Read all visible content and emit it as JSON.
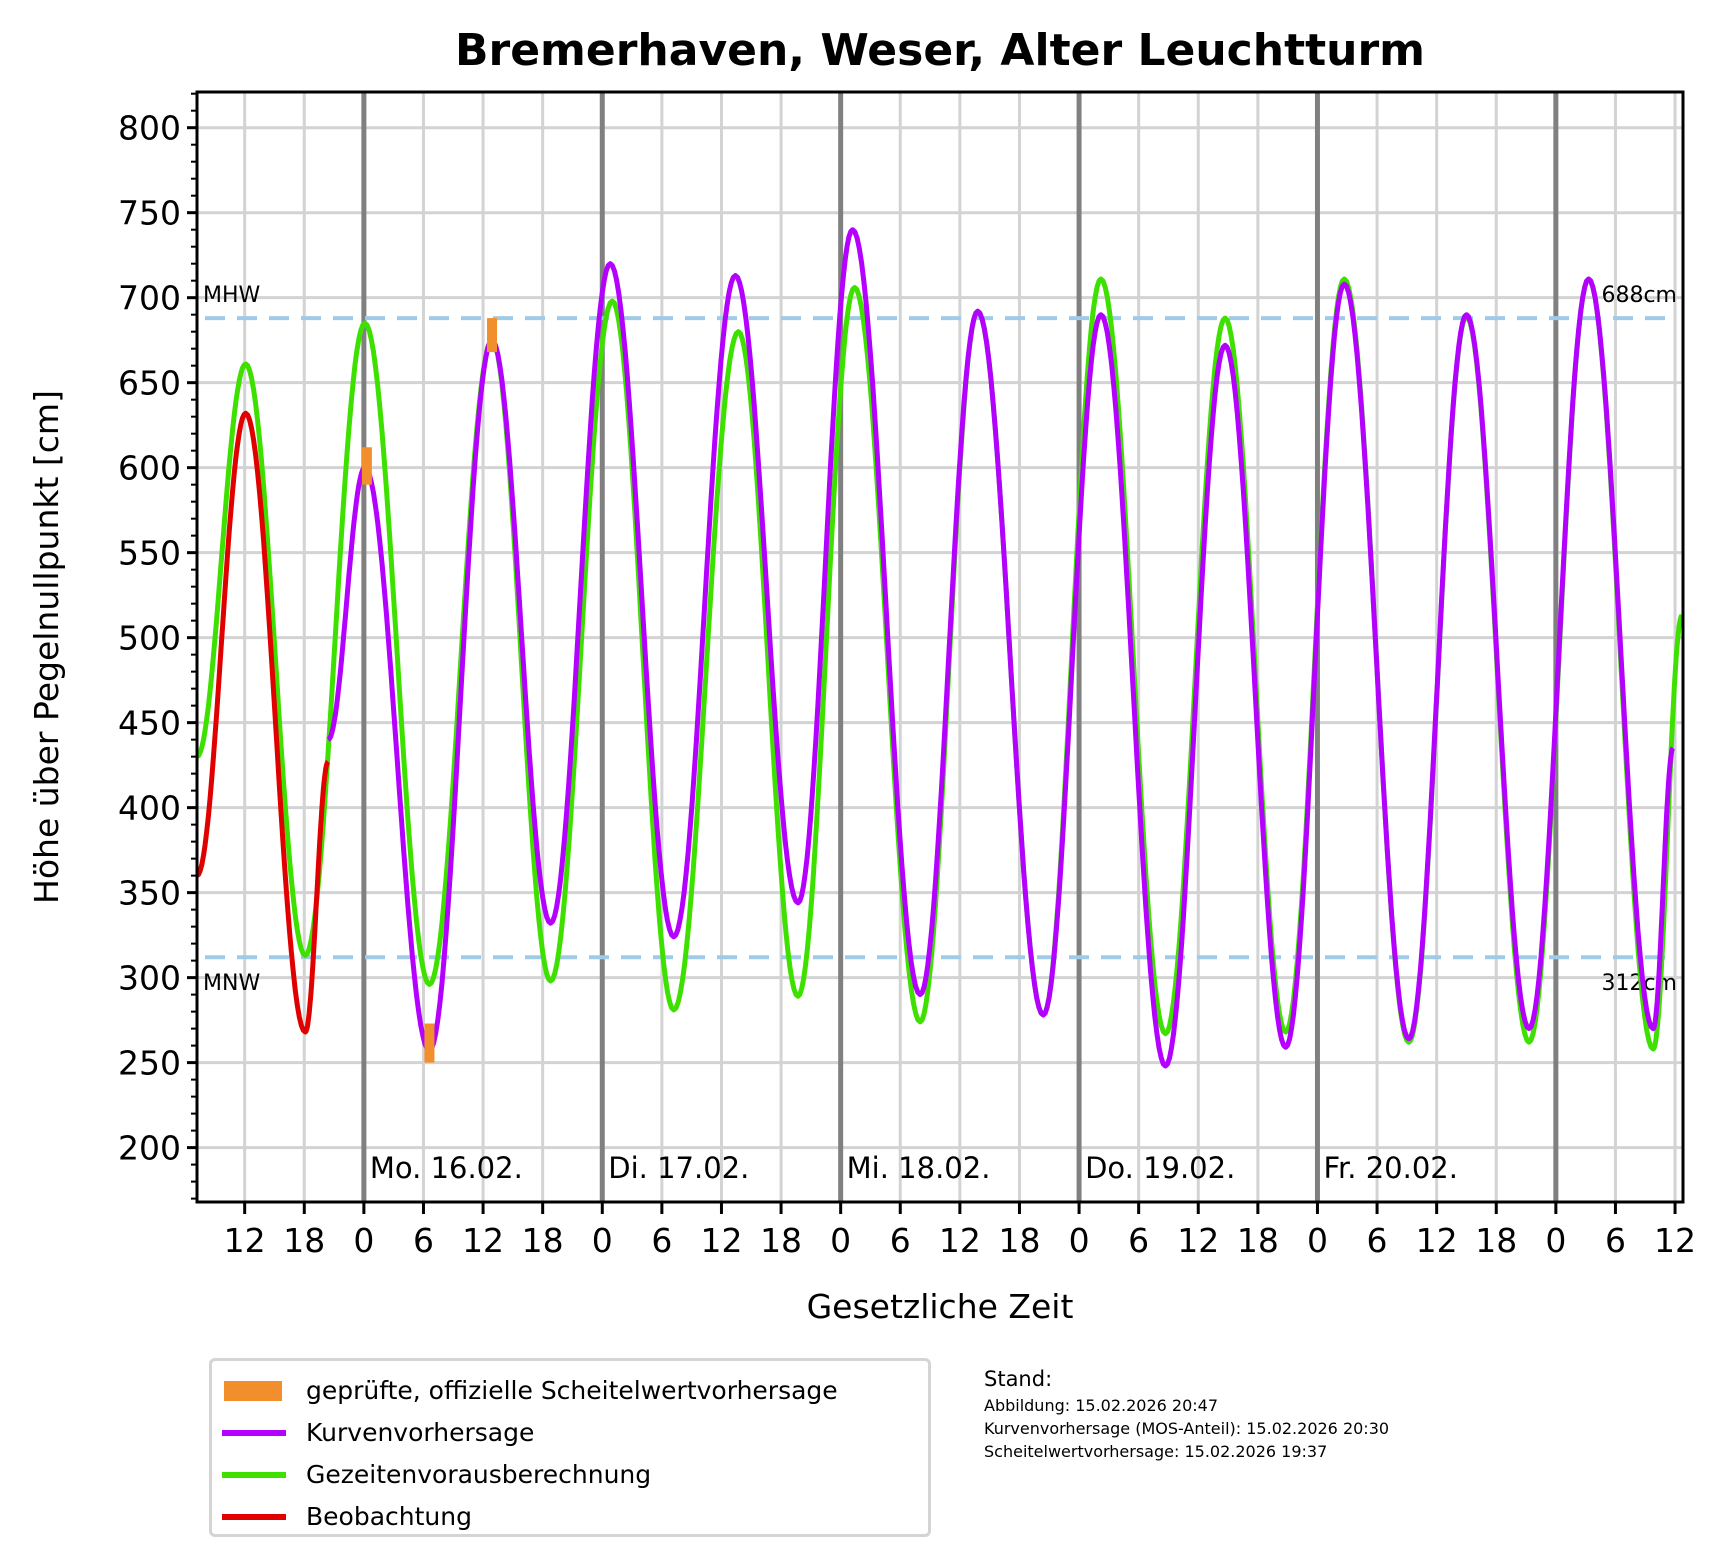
{
  "chart_data": {
    "type": "line",
    "title": "Bremerhaven, Weser, Alter Leuchtturm",
    "xlabel": "Gesetzliche Zeit",
    "ylabel": "Höhe über Pegelnullpunkt [cm]",
    "x_unit": "hours relative to Mo. 16.02. 00:00",
    "xlim": [
      -16.8,
      132.8
    ],
    "ylim": [
      168,
      821
    ],
    "grid": true,
    "yticks": [
      200,
      250,
      300,
      350,
      400,
      450,
      500,
      550,
      600,
      650,
      700,
      750,
      800
    ],
    "xticks": [
      {
        "t": -12,
        "label": "12"
      },
      {
        "t": -6,
        "label": "18"
      },
      {
        "t": 0,
        "label": "0"
      },
      {
        "t": 6,
        "label": "6"
      },
      {
        "t": 12,
        "label": "12"
      },
      {
        "t": 18,
        "label": "18"
      },
      {
        "t": 24,
        "label": "0"
      },
      {
        "t": 30,
        "label": "6"
      },
      {
        "t": 36,
        "label": "12"
      },
      {
        "t": 42,
        "label": "18"
      },
      {
        "t": 48,
        "label": "0"
      },
      {
        "t": 54,
        "label": "6"
      },
      {
        "t": 60,
        "label": "12"
      },
      {
        "t": 66,
        "label": "18"
      },
      {
        "t": 72,
        "label": "0"
      },
      {
        "t": 78,
        "label": "6"
      },
      {
        "t": 84,
        "label": "12"
      },
      {
        "t": 90,
        "label": "18"
      },
      {
        "t": 96,
        "label": "0"
      },
      {
        "t": 102,
        "label": "6"
      },
      {
        "t": 108,
        "label": "12"
      },
      {
        "t": 114,
        "label": "18"
      },
      {
        "t": 120,
        "label": "0"
      },
      {
        "t": 126,
        "label": "6"
      },
      {
        "t": 132,
        "label": "12"
      }
    ],
    "day_lines": [
      0,
      24,
      48,
      72,
      96,
      120
    ],
    "day_labels": [
      {
        "t": 0,
        "label": "Mo. 16.02."
      },
      {
        "t": 24,
        "label": "Di. 17.02."
      },
      {
        "t": 48,
        "label": "Mi. 18.02."
      },
      {
        "t": 72,
        "label": "Do. 19.02."
      },
      {
        "t": 96,
        "label": "Fr. 20.02."
      }
    ],
    "reference_lines": [
      {
        "name": "MHW",
        "value": 688,
        "label_left": "MHW",
        "label_right": "688cm"
      },
      {
        "name": "MNW",
        "value": 312,
        "label_left": "MNW",
        "label_right": "312cm"
      }
    ],
    "series": [
      {
        "name": "Gezeitenvorausberechnung",
        "color": "#3ee000",
        "extrema": [
          [
            -16.8,
            430
          ],
          [
            -11.9,
            661
          ],
          [
            -5.9,
            313
          ],
          [
            0.1,
            685
          ],
          [
            6.6,
            296
          ],
          [
            12.9,
            675
          ],
          [
            18.8,
            298
          ],
          [
            25.0,
            698
          ],
          [
            31.2,
            281
          ],
          [
            37.7,
            680
          ],
          [
            43.7,
            289
          ],
          [
            49.4,
            706
          ],
          [
            56.0,
            274
          ],
          [
            61.8,
            692
          ],
          [
            68.4,
            278
          ],
          [
            74.2,
            711
          ],
          [
            80.7,
            267
          ],
          [
            86.7,
            688
          ],
          [
            92.8,
            268
          ],
          [
            98.7,
            711
          ],
          [
            105.2,
            262
          ],
          [
            111.0,
            689
          ],
          [
            117.3,
            262
          ],
          [
            123.3,
            711
          ],
          [
            129.8,
            258
          ],
          [
            132.7,
            513
          ]
        ]
      },
      {
        "name": "Kurvenvorhersage",
        "color": "#b300ff",
        "extrema": [
          [
            -3.6,
            440
          ],
          [
            0.1,
            600
          ],
          [
            6.6,
            257
          ],
          [
            12.9,
            675
          ],
          [
            18.8,
            332
          ],
          [
            24.8,
            720
          ],
          [
            31.2,
            324
          ],
          [
            37.4,
            713
          ],
          [
            43.7,
            344
          ],
          [
            49.2,
            740
          ],
          [
            56.0,
            290
          ],
          [
            61.8,
            692
          ],
          [
            68.4,
            278
          ],
          [
            74.2,
            690
          ],
          [
            80.7,
            248
          ],
          [
            86.7,
            672
          ],
          [
            92.8,
            259
          ],
          [
            98.7,
            708
          ],
          [
            105.2,
            264
          ],
          [
            111.0,
            690
          ],
          [
            117.3,
            270
          ],
          [
            123.3,
            711
          ],
          [
            129.8,
            270
          ],
          [
            131.8,
            435
          ]
        ]
      },
      {
        "name": "Beobachtung",
        "color": "#e00000",
        "extrema": [
          [
            -16.8,
            360
          ],
          [
            -11.9,
            632
          ],
          [
            -5.9,
            268
          ],
          [
            -3.6,
            427
          ]
        ]
      }
    ],
    "crest_forecasts": {
      "name": "geprüfte, offizielle Scheitelwertvorhersage",
      "color": "#f28e2b",
      "values": [
        {
          "t": 0.3,
          "low": 590,
          "high": 612
        },
        {
          "t": 6.6,
          "low": 250,
          "high": 273
        },
        {
          "t": 12.9,
          "low": 668,
          "high": 688
        }
      ]
    },
    "legend": {
      "placement": "bottom-left",
      "entries": [
        {
          "label": "geprüfte, offizielle Scheitelwertvorhersage",
          "kind": "patch",
          "color": "#f28e2b"
        },
        {
          "label": "Kurvenvorhersage",
          "kind": "line",
          "color": "#b300ff"
        },
        {
          "label": "Gezeitenvorausberechnung",
          "kind": "line",
          "color": "#3ee000"
        },
        {
          "label": "Beobachtung",
          "kind": "line",
          "color": "#e00000"
        }
      ]
    }
  },
  "stand": {
    "title": "Stand:",
    "lines": [
      "Abbildung: 15.02.2026 20:47",
      "Kurvenvorhersage (MOS-Anteil): 15.02.2026 20:30",
      "Scheitelwertvorhersage: 15.02.2026 19:37"
    ]
  }
}
